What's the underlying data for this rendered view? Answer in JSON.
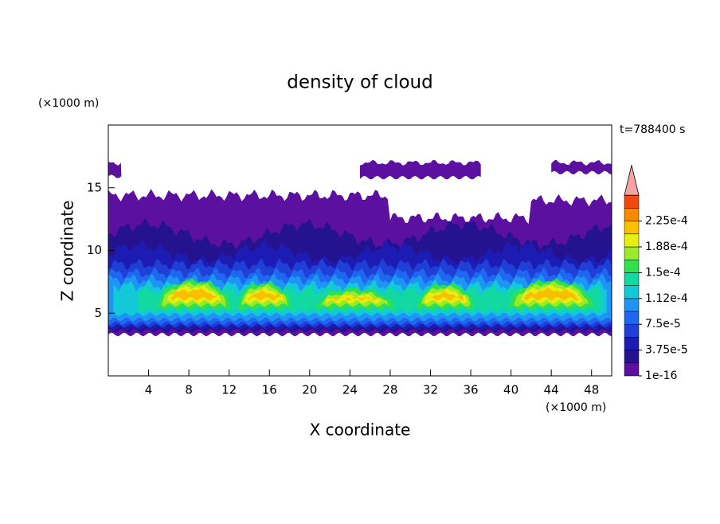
{
  "chart_data": {
    "type": "contour",
    "title": "density of cloud",
    "x_label": "X coordinate",
    "y_label": "Z coordinate",
    "x_unit": "(×1000 m)",
    "y_unit": "(×1000 m)",
    "time_label": "t=788400 s",
    "xlim": [
      0,
      50
    ],
    "ylim": [
      0,
      20
    ],
    "xticks": [
      4,
      8,
      12,
      16,
      20,
      24,
      28,
      32,
      36,
      40,
      44,
      48
    ],
    "yticks": [
      5,
      10,
      15
    ],
    "levels": [
      1e-16,
      {
        "value": 3.75e-05,
        "label": "3.75e-5"
      },
      {
        "value": 7.5e-05,
        "label": "7.5e-5"
      },
      {
        "value": 0.000112,
        "label": "1.12e-4"
      },
      {
        "value": 0.00015,
        "label": "1.5e-4"
      },
      {
        "value": 0.000188,
        "label": "1.88e-4"
      },
      {
        "value": 0.000225,
        "label": "2.25e-4"
      }
    ],
    "colors": [
      "#5b10a0",
      "#24128e",
      "#1c1cb4",
      "#1f3fd6",
      "#1f66f0",
      "#1e95f5",
      "#13c8d8",
      "#11d9a0",
      "#2fe04f",
      "#9aea2a",
      "#e6ef10",
      "#f8c000",
      "#f68a00",
      "#f04a10"
    ],
    "extend_color": "#f5a3a3"
  }
}
